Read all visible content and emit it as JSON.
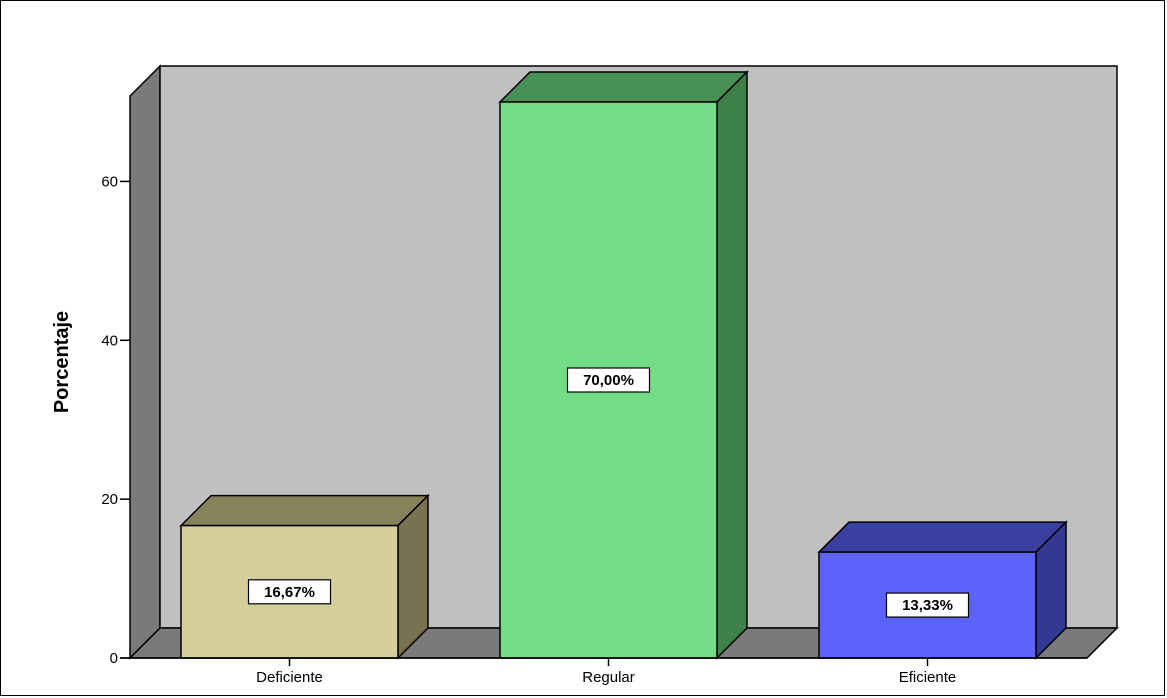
{
  "chart_data": {
    "type": "bar",
    "categories": [
      "Deficiente",
      "Regular",
      "Eficiente"
    ],
    "values": [
      16.67,
      70.0,
      13.33
    ],
    "data_labels": [
      "16,67%",
      "70,00%",
      "13,33%"
    ],
    "title": "",
    "xlabel": "",
    "ylabel": "Porcentaje",
    "ylim": [
      0,
      70
    ],
    "yticks": [
      0,
      20,
      40,
      60
    ],
    "ytick_labels": [
      "0",
      "20",
      "40",
      "60"
    ],
    "style": "3d",
    "grid": false,
    "colors": {
      "wall_back": "#c0c0c0",
      "wall_side": "#7a7a7a",
      "floor": "#7a7a7a",
      "bars": [
        {
          "front": "#d4ce9a",
          "top": "#86835b",
          "side": "#777350"
        },
        {
          "front": "#74dc86",
          "top": "#468f55",
          "side": "#3e8249"
        },
        {
          "front": "#5c62fa",
          "top": "#3a3fa0",
          "side": "#333892"
        }
      ]
    }
  }
}
